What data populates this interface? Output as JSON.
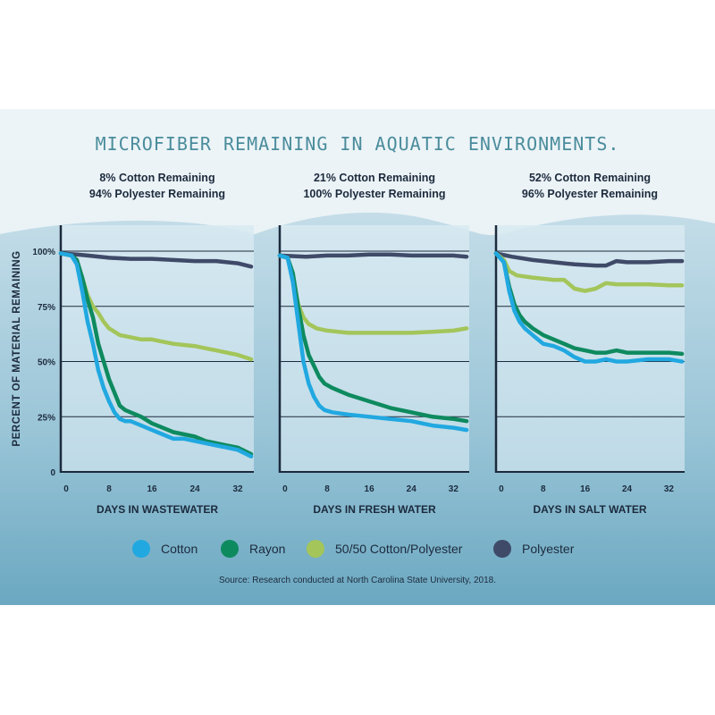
{
  "title": "MICROFIBER REMAINING IN AQUATIC ENVIRONMENTS.",
  "ylabel": "PERCENT OF MATERIAL REMAINING",
  "source": "Source: Research conducted at North Carolina State University, 2018.",
  "colors": {
    "Cotton": "#21a8e0",
    "Rayon": "#0e8a5f",
    "50/50 Cotton/Polyester": "#a3c55a",
    "Polyester": "#3f4a68"
  },
  "legend": [
    "Cotton",
    "Rayon",
    "50/50 Cotton/Polyester",
    "Polyester"
  ],
  "chart_data": [
    {
      "type": "line",
      "subtitle_line1": "8% Cotton Remaining",
      "subtitle_line2": "94% Polyester Remaining",
      "xlabel": "DAYS IN WASTEWATER",
      "x_ticks": [
        0,
        8,
        16,
        24,
        32
      ],
      "y_ticks": [
        0,
        25,
        50,
        75,
        100
      ],
      "y_tick_labels": [
        "0",
        "25%",
        "50%",
        "75%",
        "100%"
      ],
      "xlim": [
        -1,
        35
      ],
      "ylim": [
        0,
        110
      ],
      "grid": true,
      "series": [
        {
          "name": "Polyester",
          "points": [
            [
              -1,
              99
            ],
            [
              2,
              98.5
            ],
            [
              4,
              98
            ],
            [
              8,
              97
            ],
            [
              12,
              96.5
            ],
            [
              16,
              96.5
            ],
            [
              20,
              96
            ],
            [
              24,
              95.5
            ],
            [
              28,
              95.5
            ],
            [
              32,
              94.5
            ],
            [
              34.5,
              93
            ]
          ]
        },
        {
          "name": "50/50 Cotton/Polyester",
          "points": [
            [
              -1,
              99
            ],
            [
              1,
              98
            ],
            [
              2,
              95
            ],
            [
              3,
              88
            ],
            [
              4,
              80
            ],
            [
              5,
              75
            ],
            [
              6,
              72
            ],
            [
              7,
              68
            ],
            [
              8,
              65
            ],
            [
              10,
              62
            ],
            [
              12,
              61
            ],
            [
              14,
              60
            ],
            [
              16,
              60
            ],
            [
              18,
              59
            ],
            [
              20,
              58
            ],
            [
              22,
              57.5
            ],
            [
              24,
              57
            ],
            [
              26,
              56
            ],
            [
              28,
              55
            ],
            [
              30,
              54
            ],
            [
              32,
              53
            ],
            [
              34.5,
              51
            ]
          ]
        },
        {
          "name": "Rayon",
          "points": [
            [
              -1,
              99
            ],
            [
              1,
              98
            ],
            [
              2,
              96
            ],
            [
              3,
              88
            ],
            [
              4,
              78
            ],
            [
              5,
              70
            ],
            [
              6,
              58
            ],
            [
              7,
              50
            ],
            [
              8,
              42
            ],
            [
              9,
              36
            ],
            [
              10,
              30
            ],
            [
              11,
              28
            ],
            [
              12,
              27
            ],
            [
              14,
              25
            ],
            [
              16,
              22
            ],
            [
              18,
              20
            ],
            [
              20,
              18
            ],
            [
              22,
              17
            ],
            [
              24,
              16
            ],
            [
              26,
              14
            ],
            [
              28,
              13
            ],
            [
              30,
              12
            ],
            [
              32,
              11
            ],
            [
              34.5,
              8
            ]
          ]
        },
        {
          "name": "Cotton",
          "points": [
            [
              -1,
              99
            ],
            [
              1,
              98
            ],
            [
              2,
              94
            ],
            [
              3,
              82
            ],
            [
              4,
              68
            ],
            [
              5,
              58
            ],
            [
              6,
              46
            ],
            [
              7,
              38
            ],
            [
              8,
              32
            ],
            [
              9,
              27
            ],
            [
              10,
              24
            ],
            [
              11,
              23
            ],
            [
              12,
              23
            ],
            [
              14,
              21
            ],
            [
              16,
              19
            ],
            [
              18,
              17
            ],
            [
              20,
              15
            ],
            [
              22,
              15
            ],
            [
              24,
              14
            ],
            [
              26,
              13
            ],
            [
              28,
              12
            ],
            [
              30,
              11
            ],
            [
              32,
              10
            ],
            [
              34.5,
              7
            ]
          ]
        }
      ]
    },
    {
      "type": "line",
      "subtitle_line1": "21% Cotton Remaining",
      "subtitle_line2": "100% Polyester Remaining",
      "xlabel": "DAYS IN FRESH WATER",
      "x_ticks": [
        0,
        8,
        16,
        24,
        32
      ],
      "y_ticks": [
        0,
        25,
        50,
        75,
        100
      ],
      "xlim": [
        -1,
        35
      ],
      "ylim": [
        0,
        110
      ],
      "grid": true,
      "series": [
        {
          "name": "Polyester",
          "points": [
            [
              -1,
              98
            ],
            [
              4,
              97.5
            ],
            [
              8,
              98
            ],
            [
              12,
              98
            ],
            [
              16,
              98.5
            ],
            [
              20,
              98.5
            ],
            [
              24,
              98
            ],
            [
              28,
              98
            ],
            [
              32,
              98
            ],
            [
              34.5,
              97.5
            ]
          ]
        },
        {
          "name": "50/50 Cotton/Polyester",
          "points": [
            [
              -1,
              98
            ],
            [
              0.5,
              97
            ],
            [
              1.5,
              88
            ],
            [
              2.5,
              76
            ],
            [
              3.5,
              70
            ],
            [
              4.5,
              67
            ],
            [
              6,
              65
            ],
            [
              8,
              64
            ],
            [
              12,
              63
            ],
            [
              16,
              63
            ],
            [
              20,
              63
            ],
            [
              24,
              63
            ],
            [
              28,
              63.5
            ],
            [
              32,
              64
            ],
            [
              34.5,
              65
            ]
          ]
        },
        {
          "name": "Rayon",
          "points": [
            [
              -1,
              98
            ],
            [
              0.5,
              97
            ],
            [
              1.5,
              90
            ],
            [
              2.5,
              75
            ],
            [
              3.5,
              62
            ],
            [
              4.5,
              53
            ],
            [
              5.5,
              48
            ],
            [
              6.5,
              43
            ],
            [
              7.5,
              40
            ],
            [
              9,
              38
            ],
            [
              12,
              35
            ],
            [
              16,
              32
            ],
            [
              20,
              29
            ],
            [
              24,
              27
            ],
            [
              28,
              25
            ],
            [
              32,
              24
            ],
            [
              34.5,
              23
            ]
          ]
        },
        {
          "name": "Cotton",
          "points": [
            [
              -1,
              98
            ],
            [
              0.5,
              97
            ],
            [
              1.5,
              86
            ],
            [
              2.5,
              68
            ],
            [
              3.5,
              50
            ],
            [
              4.5,
              40
            ],
            [
              5.5,
              34
            ],
            [
              6.5,
              30
            ],
            [
              7.5,
              28
            ],
            [
              9,
              27
            ],
            [
              12,
              26
            ],
            [
              16,
              25
            ],
            [
              20,
              24
            ],
            [
              24,
              23
            ],
            [
              28,
              21
            ],
            [
              32,
              20
            ],
            [
              34.5,
              19
            ]
          ]
        }
      ]
    },
    {
      "type": "line",
      "subtitle_line1": "52% Cotton Remaining",
      "subtitle_line2": "96% Polyester Remaining",
      "xlabel": "DAYS IN SALT WATER",
      "x_ticks": [
        0,
        8,
        16,
        24,
        32
      ],
      "y_ticks": [
        0,
        25,
        50,
        75,
        100
      ],
      "xlim": [
        -1,
        35
      ],
      "ylim": [
        0,
        110
      ],
      "grid": true,
      "series": [
        {
          "name": "Polyester",
          "points": [
            [
              -1,
              99
            ],
            [
              2,
              97.5
            ],
            [
              6,
              96
            ],
            [
              10,
              95
            ],
            [
              14,
              94
            ],
            [
              18,
              93.5
            ],
            [
              20,
              93.5
            ],
            [
              22,
              95.5
            ],
            [
              24,
              95
            ],
            [
              28,
              95
            ],
            [
              32,
              95.5
            ],
            [
              34.5,
              95.5
            ]
          ]
        },
        {
          "name": "50/50 Cotton/Polyester",
          "points": [
            [
              -1,
              99
            ],
            [
              0.5,
              96
            ],
            [
              1.5,
              91
            ],
            [
              3,
              89
            ],
            [
              6,
              88
            ],
            [
              10,
              87
            ],
            [
              12,
              87
            ],
            [
              14,
              83
            ],
            [
              16,
              82
            ],
            [
              18,
              83
            ],
            [
              20,
              85.5
            ],
            [
              22,
              85
            ],
            [
              24,
              85
            ],
            [
              28,
              85
            ],
            [
              32,
              84.5
            ],
            [
              34.5,
              84.5
            ]
          ]
        },
        {
          "name": "Rayon",
          "points": [
            [
              -1,
              99
            ],
            [
              0.5,
              95
            ],
            [
              1.5,
              84
            ],
            [
              2.5,
              76
            ],
            [
              3.5,
              71
            ],
            [
              4.5,
              68
            ],
            [
              6,
              65
            ],
            [
              8,
              62
            ],
            [
              10,
              60
            ],
            [
              12,
              58
            ],
            [
              14,
              56
            ],
            [
              16,
              55
            ],
            [
              18,
              54
            ],
            [
              20,
              54
            ],
            [
              22,
              55
            ],
            [
              24,
              54
            ],
            [
              28,
              54
            ],
            [
              32,
              54
            ],
            [
              34.5,
              53.5
            ]
          ]
        },
        {
          "name": "Cotton",
          "points": [
            [
              -1,
              99
            ],
            [
              0.5,
              95
            ],
            [
              1.5,
              82
            ],
            [
              2.5,
              73
            ],
            [
              3.5,
              68
            ],
            [
              4.5,
              65
            ],
            [
              6,
              62
            ],
            [
              8,
              58
            ],
            [
              10,
              57
            ],
            [
              12,
              55
            ],
            [
              14,
              52
            ],
            [
              16,
              50
            ],
            [
              18,
              50
            ],
            [
              20,
              51
            ],
            [
              22,
              50
            ],
            [
              24,
              50
            ],
            [
              28,
              51
            ],
            [
              32,
              51
            ],
            [
              34.5,
              50
            ]
          ]
        }
      ]
    }
  ]
}
